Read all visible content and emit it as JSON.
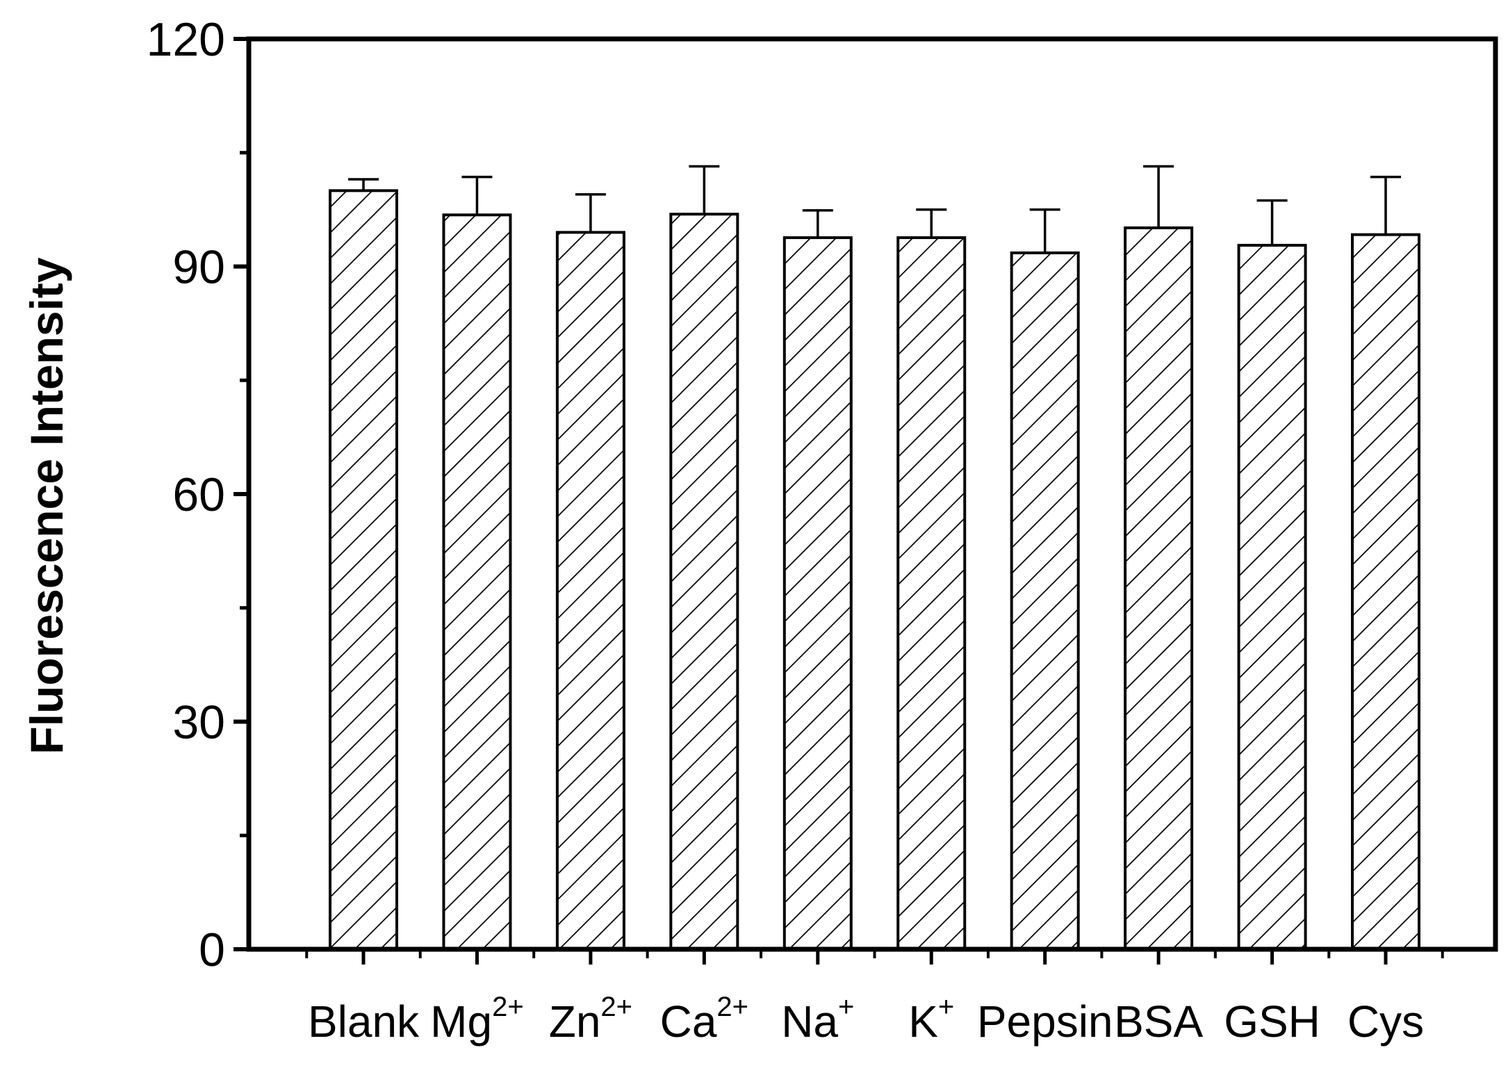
{
  "chart_data": {
    "type": "bar",
    "title": "",
    "xlabel": "",
    "ylabel": "Fluorescence Intensity",
    "ylim": [
      0,
      120
    ],
    "yticks": [
      0,
      30,
      60,
      90,
      120
    ],
    "yticks_minor": [
      15,
      45,
      75,
      105
    ],
    "grid": false,
    "legend": "none",
    "bar_fill": "hatched",
    "categories": [
      {
        "label": "Blank",
        "base": "Blank",
        "sup": ""
      },
      {
        "label": "Mg2+",
        "base": "Mg",
        "sup": "2+"
      },
      {
        "label": "Zn2+",
        "base": "Zn",
        "sup": "2+"
      },
      {
        "label": "Ca2+",
        "base": "Ca",
        "sup": "2+"
      },
      {
        "label": "Na+",
        "base": "Na",
        "sup": "+"
      },
      {
        "label": "K+",
        "base": "K",
        "sup": "+"
      },
      {
        "label": "Pepsin",
        "base": "Pepsin",
        "sup": ""
      },
      {
        "label": "BSA",
        "base": "BSA",
        "sup": ""
      },
      {
        "label": "GSH",
        "base": "GSH",
        "sup": ""
      },
      {
        "label": "Cys",
        "base": "Cys",
        "sup": ""
      }
    ],
    "values": [
      100,
      96.8,
      94.5,
      96.9,
      93.8,
      93.8,
      91.8,
      95.1,
      92.8,
      94.2
    ],
    "errors": [
      1.5,
      5.0,
      5.0,
      6.3,
      3.6,
      3.7,
      5.7,
      8.1,
      5.9,
      7.6
    ],
    "colors": {
      "axis": "#000000",
      "bar_fill": "#ffffff",
      "hatch": "#000000"
    }
  }
}
